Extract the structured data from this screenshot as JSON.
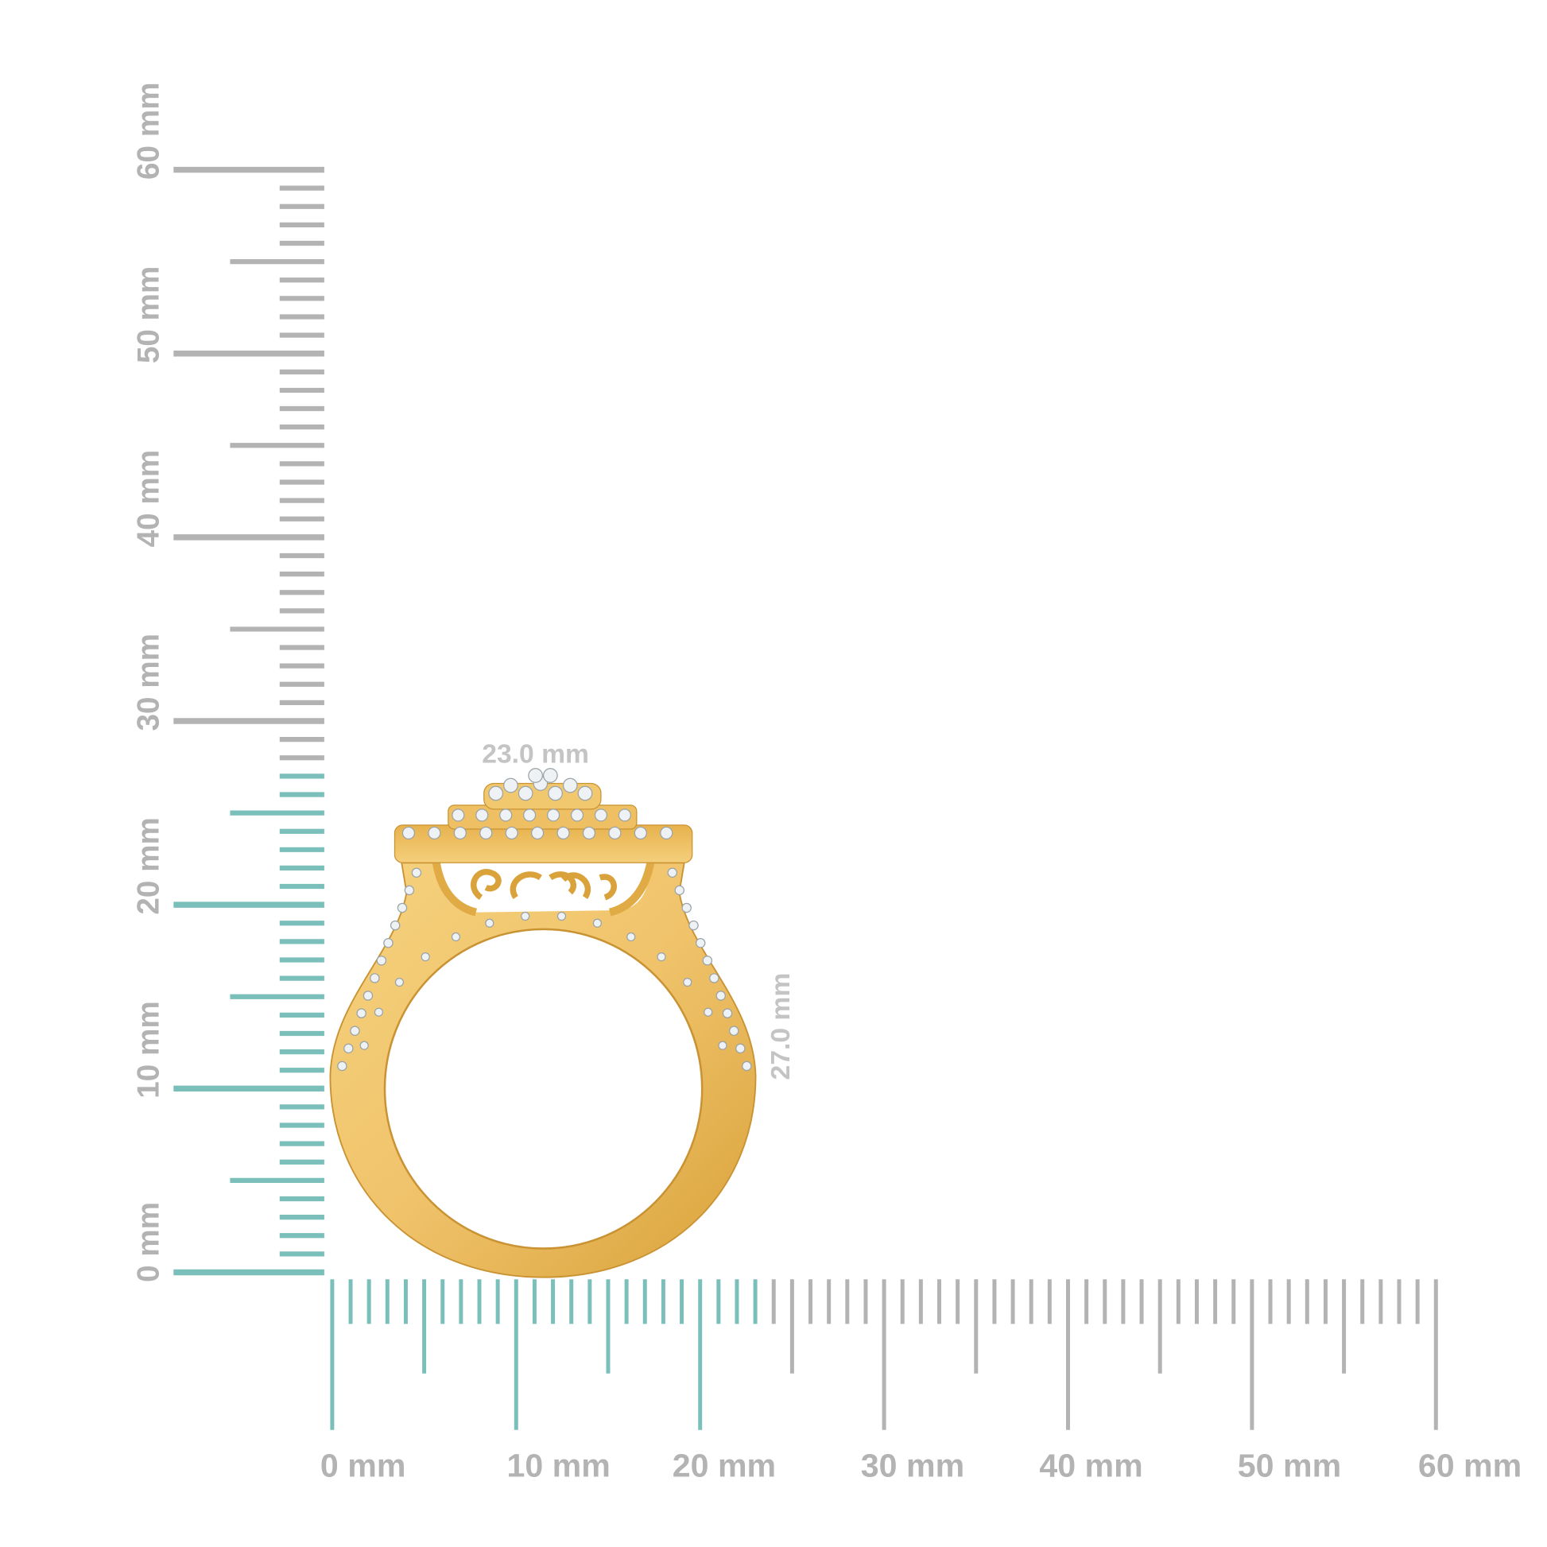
{
  "rulers": {
    "unit": "mm",
    "range": [
      0,
      60
    ],
    "vertical_labels": [
      "0 mm",
      "10 mm",
      "20 mm",
      "30 mm",
      "40 mm",
      "50 mm",
      "60 mm"
    ],
    "horizontal_labels": [
      "0 mm",
      "10 mm",
      "20 mm",
      "30 mm",
      "40 mm",
      "50 mm",
      "60 mm"
    ],
    "vertical_highlight_mm": 27,
    "horizontal_highlight_mm": 23,
    "highlight_color": "#7bbfbb",
    "tick_color": "#b3b3b3"
  },
  "product": {
    "name_icon": "gold-diamond-cluster-ring",
    "metal_color": "#f0c36b",
    "width_label": "23.0 mm",
    "height_label": "27.0 mm"
  }
}
